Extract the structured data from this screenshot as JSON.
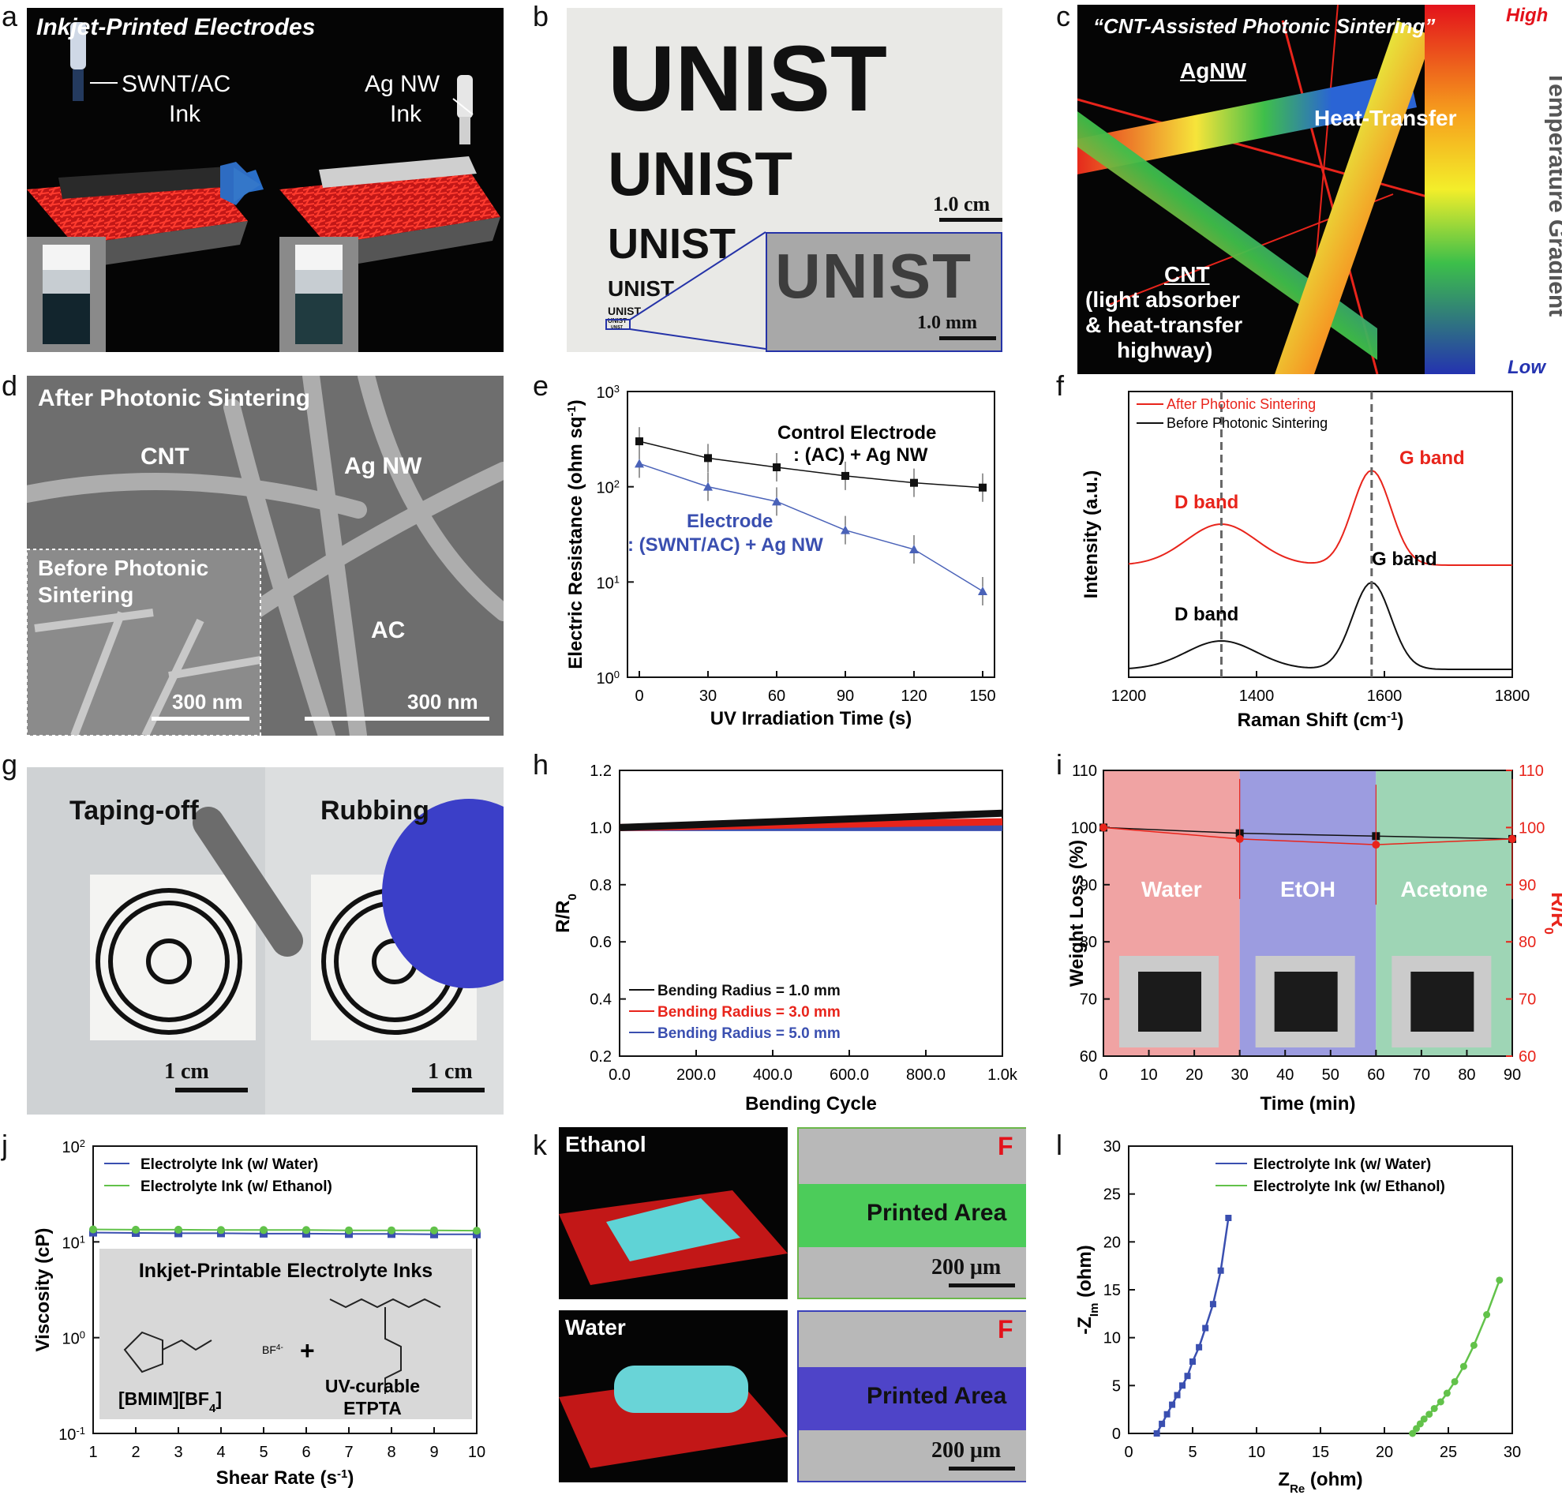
{
  "panel_letters": [
    "a",
    "b",
    "c",
    "d",
    "e",
    "f",
    "g",
    "h",
    "i",
    "j",
    "k",
    "l"
  ],
  "a": {
    "title": "Inkjet-Printed Electrodes",
    "ink1": "SWNT/AC",
    "ink1b": "Ink",
    "ink2": "Ag NW",
    "ink2b": "Ink"
  },
  "b": {
    "words": [
      "UNIST",
      "UNIST",
      "UNIST",
      "UNIST",
      "UNIST",
      "UNIST",
      "UNIST"
    ],
    "scale1": "1.0 cm",
    "scale2": "1.0 mm"
  },
  "c": {
    "title": "“CNT-Assisted Photonic Sintering”",
    "agnw": "AgNW",
    "heat": "Heat-Transfer",
    "cnt": "CNT",
    "cnt_desc1": "(light absorber",
    "cnt_desc2": "& heat-transfer",
    "cnt_desc3": "highway)",
    "high": "High",
    "low": "Low",
    "gradient": "Temperature Gradient",
    "colors": {
      "red": "#e8241b",
      "high": "#e3121b",
      "low": "#2433b0"
    }
  },
  "d": {
    "title": "After Photonic Sintering",
    "cnt": "CNT",
    "agnw": "Ag NW",
    "ac": "AC",
    "inset1": "Before Photonic",
    "inset2": "Sintering",
    "scale_inset": "300 nm",
    "scale": "300 nm"
  },
  "e": {
    "xlabel": "UV Irradiation Time (s)",
    "ylabel": "Electric Resistance (ohm sq",
    "ylabel_sup": "-1",
    "ylabel_end": ")",
    "control1": "Control Electrode",
    "control2": ": (AC) + Ag NW",
    "electrode1": "Electrode",
    "electrode2": ": (SWNT/AC) + Ag NW",
    "yticks": [
      "10",
      "10",
      "10",
      "10"
    ],
    "ytick_exp": [
      "0",
      "1",
      "2",
      "3"
    ],
    "xticks": [
      "0",
      "30",
      "60",
      "90",
      "120",
      "150"
    ]
  },
  "f": {
    "xlabel": "Raman Shift (cm",
    "xlabel_sup": "-1",
    "xlabel_end": ")",
    "ylabel": "Intensity (a.u.)",
    "legend_after": "After Photonic Sintering",
    "legend_before": "Before Photonic Sintering",
    "d_band": "D band",
    "g_band": "G band",
    "xticks": [
      "1200",
      "1400",
      "1600",
      "1800"
    ]
  },
  "g": {
    "label1": "Taping-off",
    "label2": "Rubbing",
    "scale": "1 cm"
  },
  "h": {
    "xlabel": "Bending Cycle",
    "ylabel": "R/R",
    "ylabel_sub": "0",
    "xticks": [
      "0.0",
      "200.0",
      "400.0",
      "600.0",
      "800.0",
      "1.0k"
    ],
    "yticks": [
      "0.2",
      "0.4",
      "0.6",
      "0.8",
      "1.0",
      "1.2"
    ],
    "legend": [
      "Bending Radius = 1.0 mm",
      "Bending Radius = 3.0 mm",
      "Bending Radius = 5.0 mm"
    ]
  },
  "i": {
    "xlabel": "Time (min)",
    "ylabel": "Weight Loss (%)",
    "ylabel_right": "R/R",
    "ylabel_right_sub": "0",
    "regions": [
      "Water",
      "EtOH",
      "Acetone"
    ],
    "xticks": [
      "0",
      "10",
      "20",
      "30",
      "40",
      "50",
      "60",
      "70",
      "80",
      "90"
    ],
    "yticks": [
      "60",
      "70",
      "80",
      "90",
      "100",
      "110"
    ]
  },
  "j": {
    "xlabel": "Shear Rate (s",
    "xlabel_sup": "-1",
    "xlabel_end": ")",
    "ylabel": "Viscosity (cP)",
    "legend": [
      "Electrolyte Ink (w/ Water)",
      "Electrolyte Ink (w/ Ethanol)"
    ],
    "inset_title": "Inkjet-Printable Electrolyte Inks",
    "bmim": "[BMIM][BF",
    "bmim_sub": "4",
    "bmim_end": "]",
    "bf4": "BF",
    "bf4_sup": "4-",
    "etpta1": "UV-curable",
    "etpta2": "ETPTA",
    "xticks": [
      "1",
      "2",
      "3",
      "4",
      "5",
      "6",
      "7",
      "8",
      "9",
      "10"
    ],
    "yticks": [
      "10",
      "10",
      "10",
      "10"
    ],
    "ytick_exp": [
      "-1",
      "0",
      "1",
      "2"
    ]
  },
  "k": {
    "ethanol": "Ethanol",
    "water": "Water",
    "printed": "Printed Area",
    "f": "F",
    "scale": "200 μm"
  },
  "l": {
    "xlabel": "Z",
    "xlabel_sub": "Re",
    "xlabel_end": " (ohm)",
    "ylabel": "-Z",
    "ylabel_sub": "Im",
    "ylabel_end": " (ohm)",
    "legend": [
      "Electrolyte Ink (w/ Water)",
      "Electrolyte Ink (w/ Ethanol)"
    ],
    "xticks": [
      "0",
      "5",
      "10",
      "15",
      "20",
      "25",
      "30"
    ],
    "yticks": [
      "0",
      "5",
      "10",
      "15",
      "20",
      "25",
      "30"
    ]
  },
  "chart_data": [
    {
      "type": "line",
      "panel": "e",
      "x": [
        0,
        30,
        60,
        90,
        120,
        150
      ],
      "series": [
        {
          "name": "Control Electrode : (AC) + Ag NW",
          "values": [
            300,
            200,
            160,
            130,
            110,
            98
          ]
        },
        {
          "name": "Electrode : (SWNT/AC) + Ag NW",
          "values": [
            175,
            100,
            70,
            35,
            22,
            8
          ]
        }
      ],
      "ylim": [
        1,
        1000
      ],
      "log_y": true
    },
    {
      "type": "line",
      "panel": "f",
      "series": [
        {
          "name": "After Photonic Sintering",
          "color": "#e8241b"
        },
        {
          "name": "Before Photonic Sintering",
          "color": "#111111"
        }
      ],
      "xlim": [
        1200,
        1800
      ]
    },
    {
      "type": "line",
      "panel": "h",
      "x": [
        0,
        1000
      ],
      "series": [
        {
          "name": "Bending Radius = 1.0 mm",
          "values": [
            1.0,
            1.05
          ]
        },
        {
          "name": "Bending Radius = 3.0 mm",
          "values": [
            1.0,
            1.02
          ]
        },
        {
          "name": "Bending Radius = 5.0 mm",
          "values": [
            1.0,
            1.0
          ]
        }
      ],
      "xlim": [
        0,
        1000
      ],
      "ylim": [
        0.2,
        1.2
      ]
    },
    {
      "type": "line",
      "panel": "i",
      "x": [
        0,
        30,
        60,
        90
      ],
      "series": [
        {
          "name": "Weight Loss",
          "values": [
            100,
            99,
            98.5,
            98
          ]
        },
        {
          "name": "R/R0",
          "values": [
            100,
            98,
            97,
            98
          ]
        }
      ],
      "xlim": [
        0,
        90
      ],
      "ylim": [
        60,
        110
      ]
    },
    {
      "type": "line",
      "panel": "j",
      "x": [
        1,
        2,
        3,
        4,
        5,
        6,
        7,
        8,
        9,
        10
      ],
      "series": [
        {
          "name": "Electrolyte Ink (w/ Water)",
          "values": [
            12.5,
            12.4,
            12.3,
            12.3,
            12.2,
            12.2,
            12.1,
            12.1,
            12.0,
            12.0
          ]
        },
        {
          "name": "Electrolyte Ink (w/ Ethanol)",
          "values": [
            13.5,
            13.4,
            13.4,
            13.3,
            13.3,
            13.3,
            13.2,
            13.2,
            13.2,
            13.1
          ]
        }
      ],
      "xlim": [
        1,
        10
      ],
      "ylim": [
        0.1,
        100
      ],
      "log_y": true
    },
    {
      "type": "line",
      "panel": "l",
      "series": [
        {
          "name": "Electrolyte Ink (w/ Water)",
          "x": [
            2.2,
            2.6,
            3.0,
            3.4,
            3.8,
            4.2,
            4.6,
            5.0,
            5.5,
            6.0,
            6.6,
            7.2,
            7.8
          ],
          "values": [
            0,
            1,
            2,
            3,
            4,
            5,
            6,
            7.5,
            9,
            11,
            13.5,
            17,
            22.5
          ]
        },
        {
          "name": "Electrolyte Ink (w/ Ethanol)",
          "x": [
            22.2,
            22.5,
            22.8,
            23.1,
            23.5,
            23.9,
            24.4,
            24.9,
            25.5,
            26.2,
            27.0,
            28.0,
            29.0
          ],
          "values": [
            0,
            0.5,
            1,
            1.5,
            2,
            2.6,
            3.3,
            4.2,
            5.4,
            7,
            9.2,
            12.4,
            16
          ]
        }
      ],
      "xlim": [
        0,
        30
      ],
      "ylim": [
        0,
        30
      ]
    }
  ]
}
